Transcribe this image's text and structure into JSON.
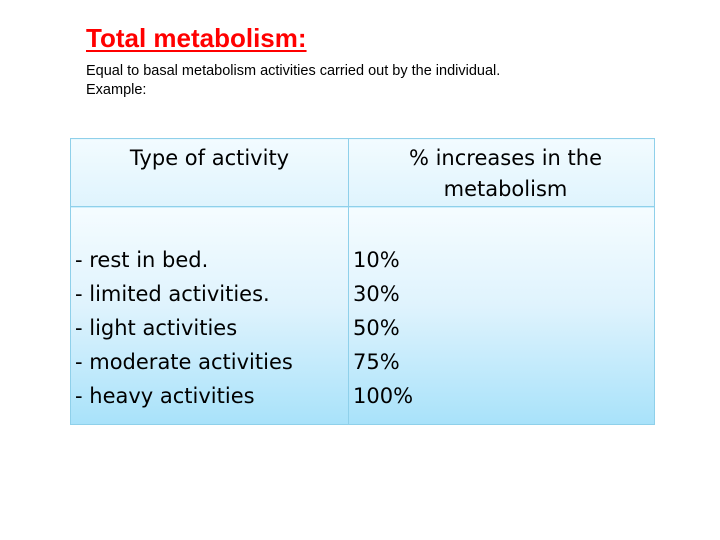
{
  "slide": {
    "title": "Total metabolism:",
    "subtitle_line1": "Equal to basal metabolism activities carried out by the individual.",
    "subtitle_line2": "Example:"
  },
  "table": {
    "headers": [
      "Type of activity",
      "% increases in the metabolism"
    ],
    "rows": [
      {
        "activity": "- rest in bed.",
        "increase": "10%"
      },
      {
        "activity": "- limited activities.",
        "increase": "30%"
      },
      {
        "activity": "- light activities",
        "increase": "50%"
      },
      {
        "activity": "- moderate activities",
        "increase": "75%"
      },
      {
        "activity": "- heavy activities",
        "increase": "100%"
      }
    ],
    "colors": {
      "border": "#8fd0ea",
      "header_fill": "#e6f6fd",
      "body_fill_bottom": "#a8e2fa"
    }
  },
  "colors": {
    "title": "#ff0000",
    "text": "#000000",
    "background": "#ffffff"
  }
}
